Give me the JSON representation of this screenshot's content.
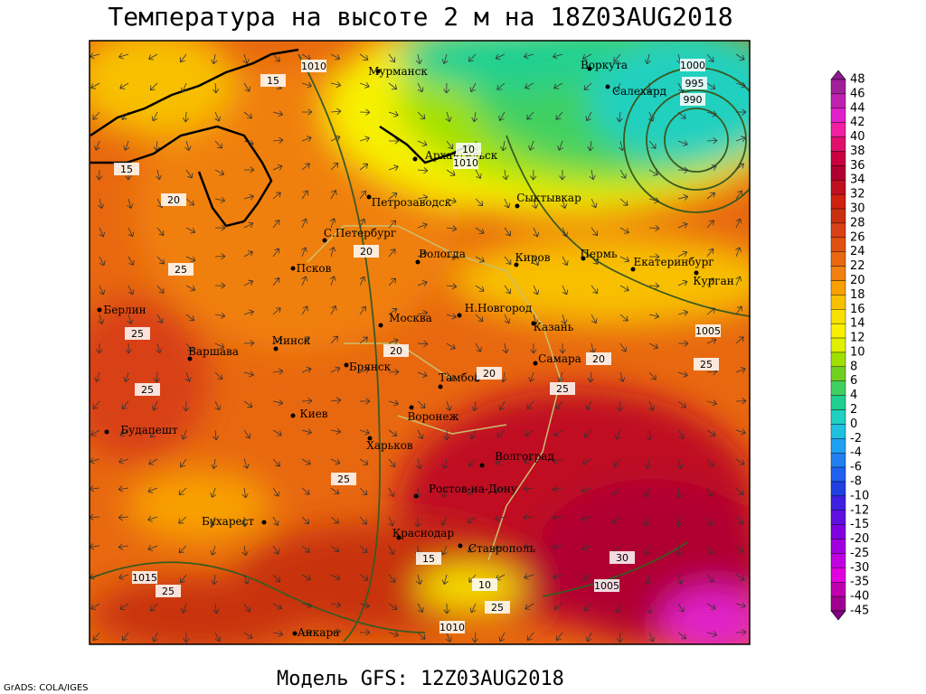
{
  "title": "Температура на высоте 2 м на 18Z03AUG2018",
  "subtitle": "Модель GFS: 12Z03AUG2018",
  "credit": "GrADS: COLA/IGES",
  "cities": [
    "Мурманск",
    "Воркута",
    "Салехард",
    "Архангельск",
    "Сыктывкар",
    "Петрозаводск",
    "С.Петербург",
    "Вологда",
    "Киров",
    "Пермь",
    "Екатеринбург",
    "Курган",
    "Псков",
    "Берлин",
    "Москва",
    "Н.Новгород",
    "Казань",
    "Минск",
    "Варшава",
    "Брянск",
    "Самара",
    "Тамбов",
    "Киев",
    "Воронеж",
    "Будапешт",
    "Харьков",
    "Волгоград",
    "Ростов-на-Дону",
    "Бухарест",
    "Краснодар",
    "Ставрополь",
    "Анкара"
  ],
  "contour_labels": [
    "1010",
    "15",
    "1000",
    "995",
    "990",
    "10",
    "1010",
    "15",
    "20",
    "25",
    "25",
    "20",
    "20",
    "25",
    "25",
    "25",
    "20",
    "1005",
    "20",
    "25",
    "1015",
    "25",
    "1005",
    "1010",
    "30",
    "10",
    "15",
    "25"
  ],
  "colorbar": {
    "labels": [
      48,
      46,
      44,
      42,
      40,
      38,
      36,
      34,
      32,
      30,
      28,
      26,
      24,
      22,
      20,
      18,
      16,
      14,
      12,
      10,
      8,
      6,
      4,
      2,
      0,
      -2,
      -4,
      -6,
      -8,
      -10,
      -12,
      -15,
      -20,
      -25,
      -30,
      -35,
      -40,
      -45
    ],
    "colors": [
      "#8b1a8b",
      "#a0209a",
      "#c020b0",
      "#e020c8",
      "#f020a0",
      "#e0106a",
      "#c80040",
      "#b00030",
      "#c01020",
      "#d02010",
      "#c83010",
      "#d84018",
      "#e05010",
      "#e86810",
      "#f08010",
      "#f8a000",
      "#f8c000",
      "#f8e000",
      "#f8f000",
      "#e0f000",
      "#a0e000",
      "#70d020",
      "#40d060",
      "#20d090",
      "#20d0c0",
      "#20c0e0",
      "#20a0f0",
      "#2080f0",
      "#2060f0",
      "#2040e0",
      "#4020e0",
      "#6010e0",
      "#8000e0",
      "#a000e0",
      "#c000e0",
      "#e000e0",
      "#c000b0",
      "#a00090",
      "#800080"
    ]
  }
}
